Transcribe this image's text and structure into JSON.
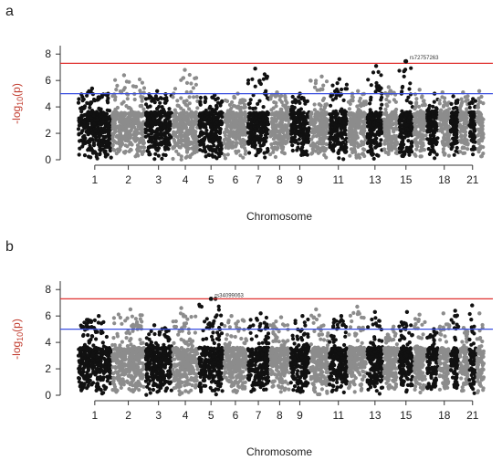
{
  "chart_data": [
    {
      "type": "scatter",
      "panel_label": "a",
      "xlabel": "Chromosome",
      "ylabel": "-log10(p)",
      "ylabel_main": "-log",
      "ylabel_sub": "10",
      "ylabel_tail": "(p)",
      "ylim": [
        0,
        8.5
      ],
      "yticks": [
        "0",
        "2",
        "4",
        "6",
        "8"
      ],
      "chromosome_tick_labels": [
        "1",
        "2",
        "3",
        "4",
        "5",
        "6",
        "7",
        "8",
        "9",
        "11",
        "13",
        "15",
        "18",
        "21"
      ],
      "chromosomes": [
        "1",
        "2",
        "3",
        "4",
        "5",
        "6",
        "7",
        "8",
        "9",
        "10",
        "11",
        "12",
        "13",
        "14",
        "15",
        "16",
        "17",
        "18",
        "19",
        "20",
        "21",
        "22"
      ],
      "chromosome_colors": [
        "#111111",
        "#8c8c8c"
      ],
      "genome_wide_threshold": {
        "value": 7.3,
        "color": "#e0312f"
      },
      "suggestive_threshold": {
        "value": 5.0,
        "color": "#3a4fe0"
      },
      "top_hit": {
        "label": "rs72757263",
        "chromosome": "15",
        "y": 7.45
      },
      "peaks": [
        5.4,
        6.4,
        5.2,
        6.8,
        4.9,
        5.0,
        6.9,
        5.1,
        5.0,
        6.3,
        6.1,
        5.2,
        7.1,
        5.5,
        7.45,
        5.3,
        5.0,
        5.1,
        4.8,
        5.1,
        4.6,
        5.2
      ]
    },
    {
      "type": "scatter",
      "panel_label": "b",
      "xlabel": "Chromosome",
      "ylabel": "-log10(p)",
      "ylabel_main": "-log",
      "ylabel_sub": "10",
      "ylabel_tail": "(p)",
      "ylim": [
        0,
        8.5
      ],
      "yticks": [
        "0",
        "2",
        "4",
        "6",
        "8"
      ],
      "chromosome_tick_labels": [
        "1",
        "2",
        "3",
        "4",
        "5",
        "6",
        "7",
        "8",
        "9",
        "11",
        "13",
        "15",
        "18",
        "21"
      ],
      "chromosomes": [
        "1",
        "2",
        "3",
        "4",
        "5",
        "6",
        "7",
        "8",
        "9",
        "10",
        "11",
        "12",
        "13",
        "14",
        "15",
        "16",
        "17",
        "18",
        "19",
        "20",
        "21",
        "22"
      ],
      "chromosome_colors": [
        "#111111",
        "#8c8c8c"
      ],
      "genome_wide_threshold": {
        "value": 7.3,
        "color": "#e0312f"
      },
      "suggestive_threshold": {
        "value": 5.0,
        "color": "#3a4fe0"
      },
      "top_hit": {
        "label": "rs34099063",
        "chromosome": "5",
        "y": 7.3
      },
      "peaks": [
        6.0,
        6.5,
        5.3,
        6.6,
        7.3,
        6.0,
        6.2,
        5.9,
        6.0,
        6.5,
        6.0,
        6.7,
        6.3,
        5.2,
        6.3,
        6.1,
        5.0,
        6.2,
        6.4,
        5.1,
        6.8,
        6.2
      ]
    }
  ]
}
